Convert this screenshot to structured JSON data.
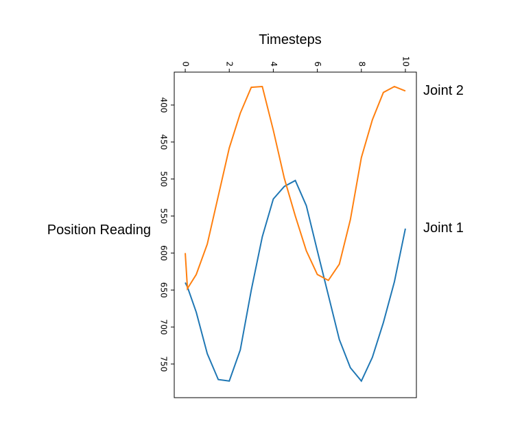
{
  "chart_data": {
    "type": "line",
    "x_title": "Timesteps",
    "y_title": "Position Reading",
    "x": [
      0,
      0.1,
      0.5,
      1,
      1.5,
      2,
      2.5,
      3,
      3.5,
      4,
      4.5,
      5,
      5.5,
      6,
      6.5,
      7,
      7.5,
      8,
      8.5,
      9,
      9.5,
      10
    ],
    "series": [
      {
        "name": "Joint 1",
        "color": "#1f77b4",
        "values": [
          640,
          646,
          680,
          736,
          771,
          773,
          731,
          650,
          578,
          527,
          510,
          502,
          536,
          597,
          657,
          717,
          755,
          773,
          741,
          694,
          639,
          567
        ]
      },
      {
        "name": "Joint 2",
        "color": "#ff7f0e",
        "values": [
          600,
          648,
          629,
          588,
          523,
          458,
          411,
          376,
          375,
          434,
          499,
          550,
          597,
          629,
          637,
          615,
          555,
          471,
          420,
          383,
          375,
          381
        ]
      }
    ],
    "xlim": [
      -0.5,
      10.5
    ],
    "ylim": [
      355.5,
      795.5
    ],
    "y_inverted": true,
    "xticks": [
      0,
      2,
      4,
      6,
      8,
      10
    ],
    "yticks": [
      400,
      450,
      500,
      550,
      600,
      650,
      700,
      750
    ]
  }
}
